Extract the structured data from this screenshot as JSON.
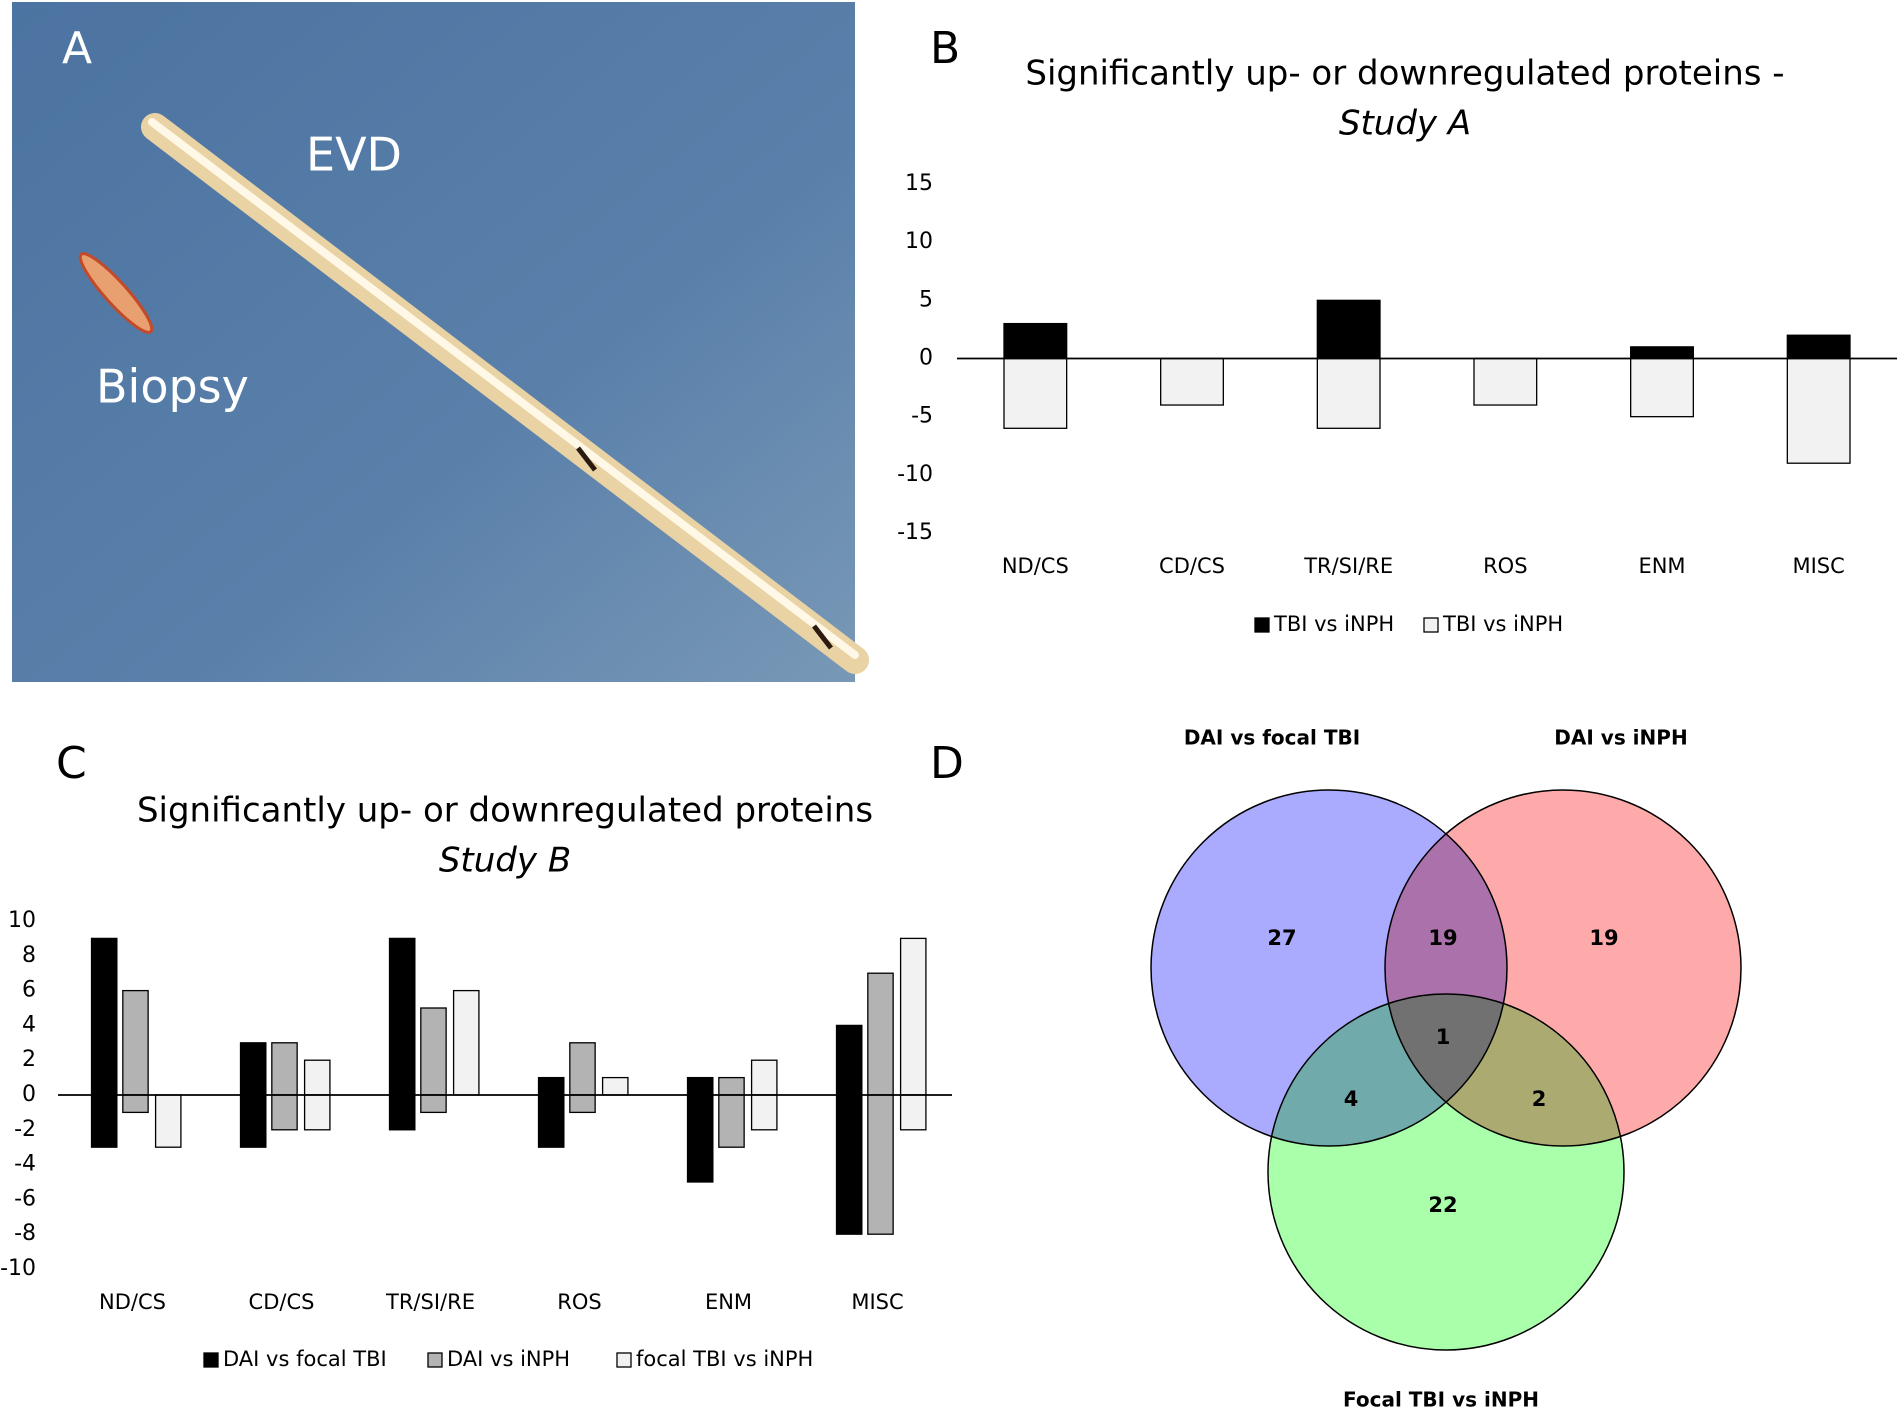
{
  "photo": {
    "panel": "A",
    "labels": [
      "EVD",
      "Biopsy"
    ]
  },
  "chart_data": [
    {
      "type": "bar",
      "panel": "B",
      "title": "Significantly up- or downregulated proteins -",
      "subtitle": "Study A",
      "categories": [
        "ND/CS",
        "CD/CS",
        "TR/SI/RE",
        "ROS",
        "ENM",
        "MISC"
      ],
      "series": [
        {
          "name": "TBI vs iNPH",
          "color": "#000000",
          "values": [
            3,
            0,
            5,
            0,
            1,
            2
          ]
        },
        {
          "name": "TBI vs iNPH",
          "color": "#f2f2f2",
          "values": [
            -6,
            -4,
            -6,
            -4,
            -5,
            -9
          ]
        }
      ],
      "ylim": [
        -15,
        15
      ],
      "yticks": [
        -15,
        -10,
        -5,
        0,
        5,
        10,
        15
      ],
      "grid": false
    },
    {
      "type": "bar",
      "panel": "C",
      "title": "Significantly up- or downregulated proteins",
      "subtitle": "Study B",
      "categories": [
        "ND/CS",
        "CD/CS",
        "TR/SI/RE",
        "ROS",
        "ENM",
        "MISC"
      ],
      "series": [
        {
          "name": "DAI vs focal TBI",
          "color": "#000000",
          "values": [
            9,
            3,
            9,
            1,
            1,
            4
          ],
          "down_values": [
            -3,
            -3,
            -2,
            -3,
            -5,
            -8
          ]
        },
        {
          "name": "DAI vs iNPH",
          "color": "#b3b3b3",
          "values": [
            6,
            3,
            5,
            3,
            1,
            7
          ],
          "down_values": [
            -1,
            -2,
            -1,
            -1,
            -3,
            -8
          ]
        },
        {
          "name": "focal TBI vs iNPH",
          "color": "#f2f2f2",
          "values": [
            0,
            2,
            6,
            1,
            2,
            9
          ],
          "down_values": [
            -3,
            -2,
            0,
            0,
            -2,
            -2
          ]
        }
      ],
      "ylim": [
        -10,
        10
      ],
      "yticks": [
        -10,
        -8,
        -6,
        -4,
        -2,
        0,
        2,
        4,
        6,
        8,
        10
      ],
      "grid": false
    },
    {
      "type": "venn",
      "panel": "D",
      "sets": [
        {
          "name": "DAI vs focal TBI",
          "color": "#aaaaff"
        },
        {
          "name": "DAI vs  iNPH",
          "color": "#ffaaaa"
        },
        {
          "name": "Focal TBI vs  iNPH",
          "color": "#aaffaa"
        }
      ],
      "counts": [
        27,
        19,
        19,
        1,
        4,
        2,
        22
      ]
    }
  ]
}
